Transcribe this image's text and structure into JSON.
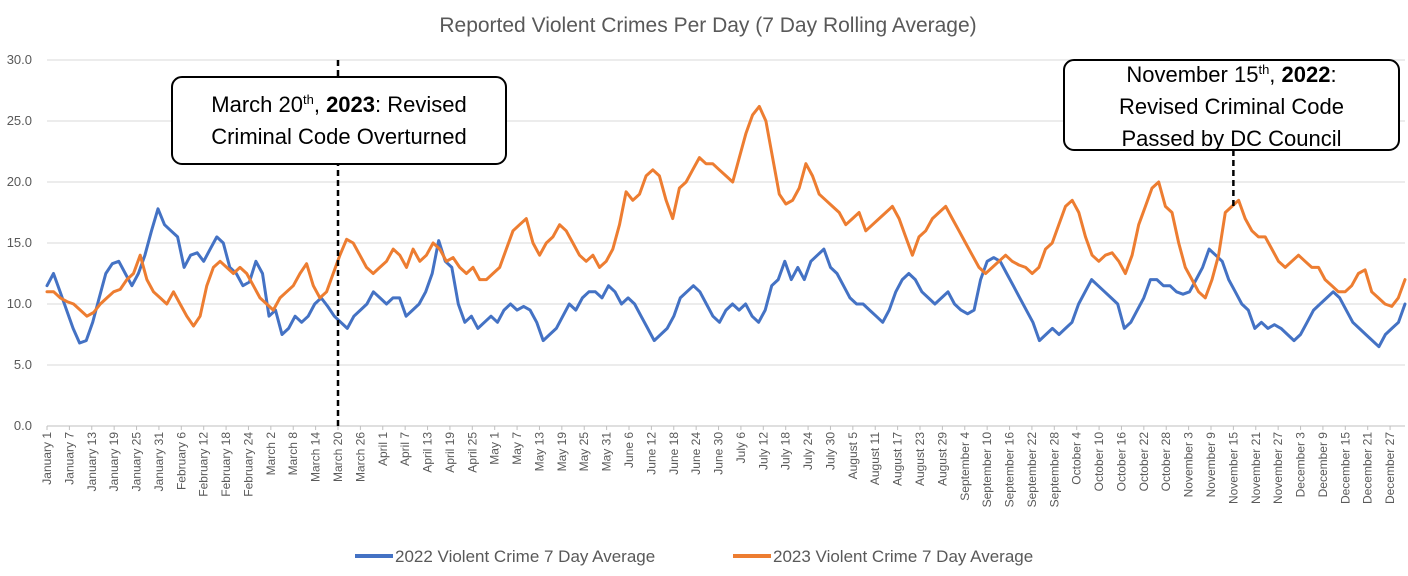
{
  "chart_data": {
    "type": "line",
    "title": "Reported Violent Crimes Per Day (7 Day Rolling Average)",
    "xlabel": "",
    "ylabel": "",
    "ylim": [
      0,
      30
    ],
    "yticks": [
      "0.0",
      "5.0",
      "10.0",
      "15.0",
      "20.0",
      "25.0",
      "30.0"
    ],
    "grid": "horizontal",
    "legend_position": "bottom",
    "x_tick_labels": [
      "January 1",
      "January 7",
      "January 13",
      "January 19",
      "January 25",
      "January 31",
      "February 6",
      "February 12",
      "February 18",
      "February 24",
      "March 2",
      "March 8",
      "March 14",
      "March 20",
      "March 26",
      "April 1",
      "April 7",
      "April 13",
      "April 19",
      "April 25",
      "May 1",
      "May 7",
      "May 13",
      "May 19",
      "May 25",
      "May 31",
      "June 6",
      "June 12",
      "June 18",
      "June 24",
      "June 30",
      "July 6",
      "July 12",
      "July 18",
      "July 24",
      "July 30",
      "August 5",
      "August 11",
      "August 17",
      "August 23",
      "August 29",
      "September 4",
      "September 10",
      "September 16",
      "September 22",
      "September 28",
      "October 4",
      "October 10",
      "October 16",
      "October 22",
      "October 28",
      "November 3",
      "November 9",
      "November 15",
      "November 21",
      "November 27",
      "December 3",
      "December 9",
      "December 15",
      "December 21",
      "December 27"
    ],
    "series": [
      {
        "name": "2022 Violent Crime 7 Day Average",
        "color": "#4472C4",
        "day_values": [
          11.5,
          12.5,
          11,
          9.5,
          8,
          6.8,
          7,
          8.5,
          10.5,
          12.5,
          13.3,
          13.5,
          12.5,
          11.5,
          12.5,
          14,
          16,
          17.8,
          16.5,
          16,
          15.5,
          13,
          14,
          14.2,
          13.5,
          14.5,
          15.5,
          15,
          13,
          12.5,
          11.5,
          11.8,
          13.5,
          12.5,
          9,
          9.5,
          7.5,
          8,
          9,
          8.5,
          9,
          10,
          10.5,
          9.8,
          9,
          8.5,
          8,
          9,
          9.5,
          10,
          11,
          10.5,
          10,
          10.5,
          10.5,
          9,
          9.5,
          10,
          11,
          12.5,
          15.2,
          13.5,
          13,
          10,
          8.5,
          9,
          8,
          8.5,
          9,
          8.5,
          9.5,
          10,
          9.5,
          9.8,
          9.5,
          8.5,
          7,
          7.5,
          8,
          9,
          10,
          9.5,
          10.5,
          11,
          11,
          10.5,
          11.5,
          11,
          10,
          10.5,
          10,
          9,
          8,
          7,
          7.5,
          8,
          9,
          10.5,
          11,
          11.5,
          11,
          10,
          9,
          8.5,
          9.5,
          10,
          9.5,
          10,
          9,
          8.5,
          9.5,
          11.5,
          12,
          13.5,
          12,
          13,
          12,
          13.5,
          14,
          14.5,
          13,
          12.5,
          11.5,
          10.5,
          10,
          10,
          9.5,
          9,
          8.5,
          9.5,
          11,
          12,
          12.5,
          12,
          11,
          10.5,
          10,
          10.5,
          11,
          10,
          9.5,
          9.2,
          9.5,
          12,
          13.5,
          13.8,
          13.5,
          12.5,
          11.5,
          10.5,
          9.5,
          8.5,
          7,
          7.5,
          8,
          7.5,
          8,
          8.5,
          10,
          11,
          12,
          11.5,
          11,
          10.5,
          10,
          8,
          8.5,
          9.5,
          10.5,
          12,
          12,
          11.5,
          11.5,
          11,
          10.8,
          11,
          12,
          13,
          14.5,
          14,
          13.5,
          12,
          11,
          10,
          9.5,
          8,
          8.5,
          8,
          8.3,
          8,
          7.5,
          7,
          7.5,
          8.5,
          9.5,
          10,
          10.5,
          11,
          10.5,
          9.5,
          8.5,
          8,
          7.5,
          7,
          6.5,
          7.5,
          8,
          8.5,
          10
        ],
        "note": "daily 7-day average readings, Jan 1 through Dec 31 sampled every 2 days"
      },
      {
        "name": "2023 Violent Crime 7 Day Average",
        "color": "#ED7D31",
        "day_values": [
          11,
          11,
          10.5,
          10.2,
          10,
          9.5,
          9,
          9.3,
          10,
          10.5,
          11,
          11.2,
          12,
          12.5,
          14,
          12,
          11,
          10.5,
          10,
          11,
          10,
          9,
          8.2,
          9,
          11.5,
          13,
          13.5,
          13,
          12.5,
          13,
          12.5,
          11.5,
          10.5,
          10,
          9.5,
          10.5,
          11,
          11.5,
          12.5,
          13.3,
          11.5,
          10.5,
          11,
          12.5,
          14,
          15.3,
          15,
          14,
          13,
          12.5,
          13,
          13.5,
          14.5,
          14,
          13,
          14.5,
          13.5,
          14,
          15,
          14.5,
          13.5,
          13.8,
          13,
          12.5,
          13,
          12,
          12,
          12.5,
          13,
          14.5,
          16,
          16.5,
          17,
          15,
          14,
          15,
          15.5,
          16.5,
          16,
          15,
          14,
          13.5,
          14,
          13,
          13.5,
          14.5,
          16.5,
          19.2,
          18.5,
          19,
          20.5,
          21,
          20.5,
          18.5,
          17,
          19.5,
          20,
          21,
          22,
          21.5,
          21.5,
          21,
          20.5,
          20,
          22,
          24,
          25.5,
          26.2,
          25,
          22,
          19,
          18.2,
          18.5,
          19.5,
          21.5,
          20.5,
          19,
          18.5,
          18,
          17.5,
          16.5,
          17,
          17.5,
          16,
          16.5,
          17,
          17.5,
          18,
          17,
          15.5,
          14,
          15.5,
          16,
          17,
          17.5,
          18,
          17,
          16,
          15,
          14,
          13,
          12.5,
          13,
          13.5,
          14,
          13.5,
          13.2,
          13,
          12.5,
          13,
          14.5,
          15,
          16.5,
          18,
          18.5,
          17.5,
          15.5,
          14,
          13.5,
          14,
          14.2,
          13.5,
          12.5,
          14,
          16.5,
          18,
          19.5,
          20,
          18,
          17.5,
          15,
          13,
          12,
          11,
          10.5,
          12,
          14,
          17.5,
          18,
          18.5,
          17,
          16,
          15.5,
          15.5,
          14.5,
          13.5,
          13,
          13.5,
          14,
          13.5,
          13,
          13,
          12,
          11.5,
          11,
          11,
          11.5,
          12.5,
          12.8,
          11,
          10.5,
          10,
          9.8,
          10.5,
          12
        ],
        "note": "daily 7-day average readings, Jan 1 through Dec 31 sampled every 2 days"
      }
    ],
    "annotations": [
      {
        "position_label": "March 20",
        "pre": "March 20",
        "sup": "th",
        "comma": ", ",
        "year": "2023",
        "post": ": Revised",
        "line2": "Criminal Code Overturned"
      },
      {
        "position_label": "November 15",
        "pre": "November 15",
        "sup": "th",
        "comma": ", ",
        "year": "2022",
        "post": ":",
        "line2": "Revised Criminal Code",
        "line3": "Passed by DC Council"
      }
    ]
  }
}
